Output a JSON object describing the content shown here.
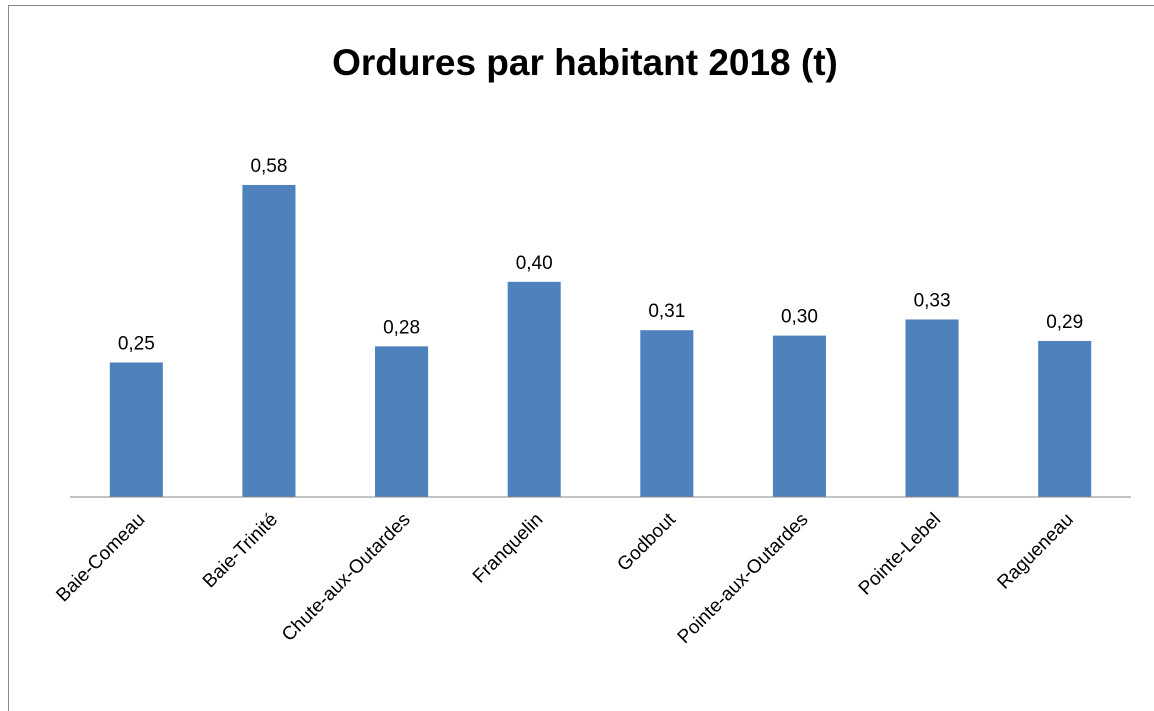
{
  "chart_data": {
    "type": "bar",
    "title": "Ordures par habitant 2018 (t)",
    "categories": [
      "Baie-Comeau",
      "Baie-Trinité",
      "Chute-aux-Outardes",
      "Franquelin",
      "Godbout",
      "Pointe-aux-Outardes",
      "Pointe-Lebel",
      "Ragueneau"
    ],
    "values": [
      0.25,
      0.58,
      0.28,
      0.4,
      0.31,
      0.3,
      0.33,
      0.29
    ],
    "value_labels": [
      "0,25",
      "0,58",
      "0,28",
      "0,40",
      "0,31",
      "0,30",
      "0,33",
      "0,29"
    ],
    "color": "#4f81bd",
    "ylim": [
      0,
      0.7
    ]
  }
}
